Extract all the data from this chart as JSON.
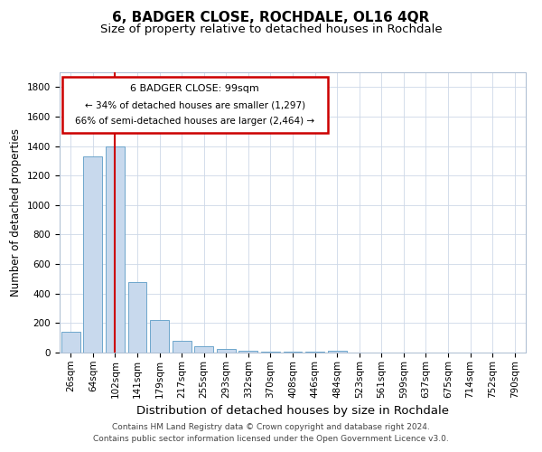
{
  "title": "6, BADGER CLOSE, ROCHDALE, OL16 4QR",
  "subtitle": "Size of property relative to detached houses in Rochdale",
  "xlabel": "Distribution of detached houses by size in Rochdale",
  "ylabel": "Number of detached properties",
  "categories": [
    "26sqm",
    "64sqm",
    "102sqm",
    "141sqm",
    "179sqm",
    "217sqm",
    "255sqm",
    "293sqm",
    "332sqm",
    "370sqm",
    "408sqm",
    "446sqm",
    "484sqm",
    "523sqm",
    "561sqm",
    "599sqm",
    "637sqm",
    "675sqm",
    "714sqm",
    "752sqm",
    "790sqm"
  ],
  "values": [
    140,
    1330,
    1400,
    480,
    220,
    80,
    45,
    25,
    15,
    8,
    5,
    5,
    15,
    0,
    0,
    0,
    0,
    0,
    0,
    0,
    0
  ],
  "bar_color": "#c8d9ed",
  "bar_edge_color": "#6ea6cc",
  "red_line_index": 2,
  "annotation_title": "6 BADGER CLOSE: 99sqm",
  "annotation_line1": "← 34% of detached houses are smaller (1,297)",
  "annotation_line2": "66% of semi-detached houses are larger (2,464) →",
  "annotation_box_color": "#ffffff",
  "annotation_box_edge": "#cc0000",
  "red_line_color": "#cc0000",
  "ylim": [
    0,
    1900
  ],
  "yticks": [
    0,
    200,
    400,
    600,
    800,
    1000,
    1200,
    1400,
    1600,
    1800
  ],
  "footnote1": "Contains HM Land Registry data © Crown copyright and database right 2024.",
  "footnote2": "Contains public sector information licensed under the Open Government Licence v3.0.",
  "title_fontsize": 11,
  "subtitle_fontsize": 9.5,
  "xlabel_fontsize": 9.5,
  "ylabel_fontsize": 8.5,
  "tick_fontsize": 7.5,
  "annotation_title_fontsize": 8,
  "annotation_text_fontsize": 7.5,
  "footnote_fontsize": 6.5
}
